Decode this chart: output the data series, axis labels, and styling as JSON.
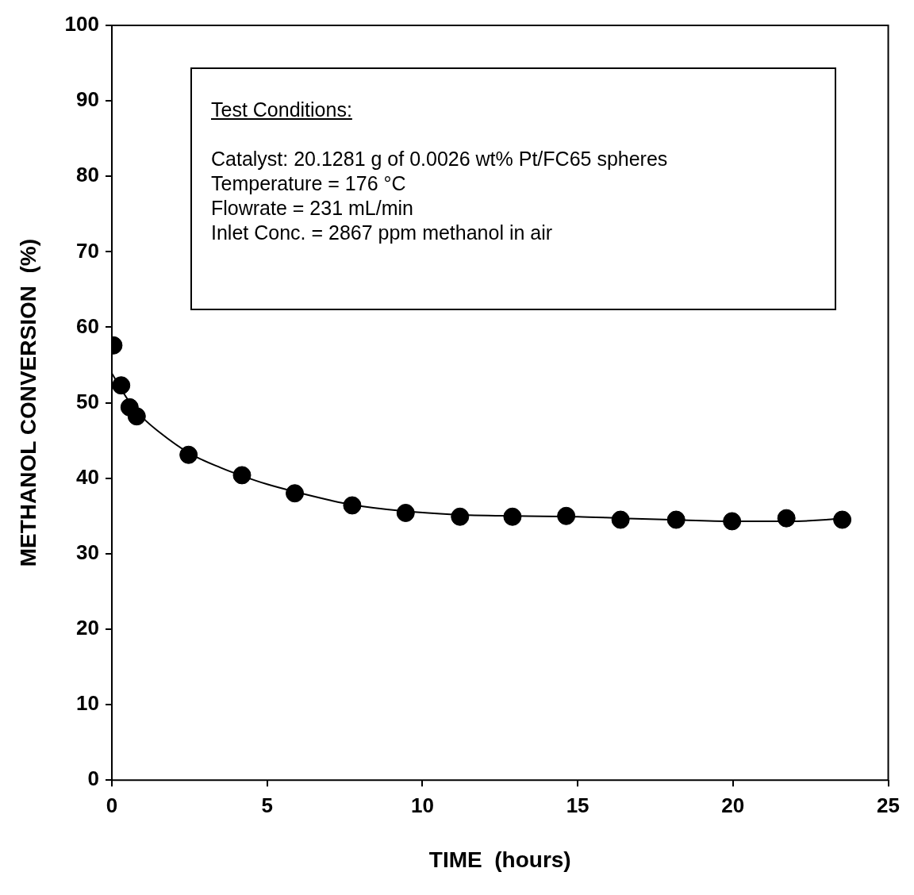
{
  "chart_data": {
    "type": "scatter",
    "xlabel": "TIME  (hours)",
    "ylabel": "METHANOL CONVERSION  (%)",
    "xlim": [
      0,
      25
    ],
    "xticks": [
      0,
      5,
      10,
      15,
      20,
      25
    ],
    "ylim": [
      0,
      100
    ],
    "yticks": [
      0,
      10,
      20,
      30,
      40,
      50,
      60,
      70,
      80,
      90,
      100
    ],
    "grid": false,
    "legend": false,
    "series": [
      {
        "marker": "circle",
        "color": "#000000",
        "x": [
          0.05,
          0.3,
          0.57,
          0.8,
          2.47,
          4.19,
          5.89,
          7.74,
          9.46,
          11.21,
          12.9,
          14.63,
          16.38,
          18.17,
          19.97,
          21.72,
          23.52
        ],
        "values": [
          57.6,
          52.3,
          49.4,
          48.2,
          43.1,
          40.4,
          38.0,
          36.4,
          35.4,
          34.9,
          34.9,
          35.0,
          34.5,
          34.5,
          34.3,
          34.7,
          34.5
        ]
      },
      {
        "type": "line",
        "marker": "none",
        "line_style": "solid",
        "color": "#000000",
        "x": [
          0,
          0.5,
          1,
          1.5,
          2.5,
          3.5,
          4.2,
          5,
          5.9,
          7,
          7.7,
          9.5,
          11,
          13,
          15,
          16.4,
          18,
          20,
          21.7,
          23,
          23.6
        ],
        "values": [
          53.9,
          50.5,
          48.0,
          46.2,
          43.3,
          41.4,
          40.3,
          39.2,
          38.2,
          37.1,
          36.5,
          35.6,
          35.2,
          35.0,
          34.9,
          34.7,
          34.5,
          34.3,
          34.3,
          34.5,
          34.8
        ]
      }
    ],
    "annotations": [
      "Test Conditions:",
      "Catalyst:  20.1281 g of 0.0026 wt% Pt/FC65 spheres",
      "Temperature = 176  °C",
      "Flowrate = 231 mL/min",
      "Inlet Conc. = 2867 ppm methanol in air"
    ]
  }
}
